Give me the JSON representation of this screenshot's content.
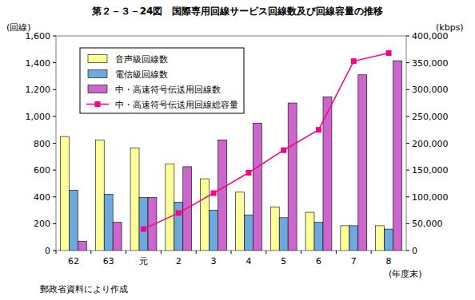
{
  "chart_data": {
    "type": "bar",
    "title": "第２－３－24図　国際専用回線サービス回線数及び回線容量の推移",
    "ylabel": "(回線)",
    "y2label": "(kbps)",
    "xlabel": "(年度末)",
    "source": "郵政省資料により作成",
    "categories": [
      "62",
      "63",
      "元",
      "2",
      "3",
      "4",
      "5",
      "6",
      "7",
      "8"
    ],
    "series": [
      {
        "name": "音声級回線数",
        "type": "bar",
        "color": "#ffff99",
        "values": [
          850,
          825,
          765,
          645,
          535,
          435,
          325,
          285,
          185,
          185
        ]
      },
      {
        "name": "電信級回線数",
        "type": "bar",
        "color": "#6fa8dc",
        "values": [
          450,
          420,
          395,
          360,
          300,
          265,
          245,
          210,
          185,
          160
        ]
      },
      {
        "name": "中・高速符号伝送用回線数",
        "type": "bar",
        "color": "#cc66cc",
        "values": [
          70,
          210,
          395,
          625,
          825,
          950,
          1100,
          1145,
          1310,
          1415
        ]
      },
      {
        "name": "中・高速符号伝送用回線総容量",
        "type": "line",
        "axis": "y2",
        "color": "#ff0080",
        "marker": "square",
        "values": [
          null,
          null,
          40000,
          70000,
          107000,
          145000,
          187000,
          225000,
          353000,
          368000
        ]
      }
    ],
    "ylim": [
      0,
      1600
    ],
    "yticks": [
      0,
      200,
      400,
      600,
      800,
      {
        "value": 1000,
        "label": "1,000"
      },
      {
        "value": 1200,
        "label": "1,200"
      },
      {
        "value": 1400,
        "label": "1,400"
      },
      {
        "value": 1600,
        "label": "1,600"
      }
    ],
    "y2lim": [
      0,
      400000
    ],
    "y2ticks": [
      0,
      {
        "value": 50000,
        "label": "50,000"
      },
      {
        "value": 100000,
        "label": "100,000"
      },
      {
        "value": 150000,
        "label": "150,000"
      },
      {
        "value": 200000,
        "label": "200,000"
      },
      {
        "value": 250000,
        "label": "250,000"
      },
      {
        "value": 300000,
        "label": "300,000"
      },
      {
        "value": 350000,
        "label": "350,000"
      },
      {
        "value": 400000,
        "label": "400,000"
      }
    ],
    "grid": false,
    "legend": "upper-left"
  }
}
